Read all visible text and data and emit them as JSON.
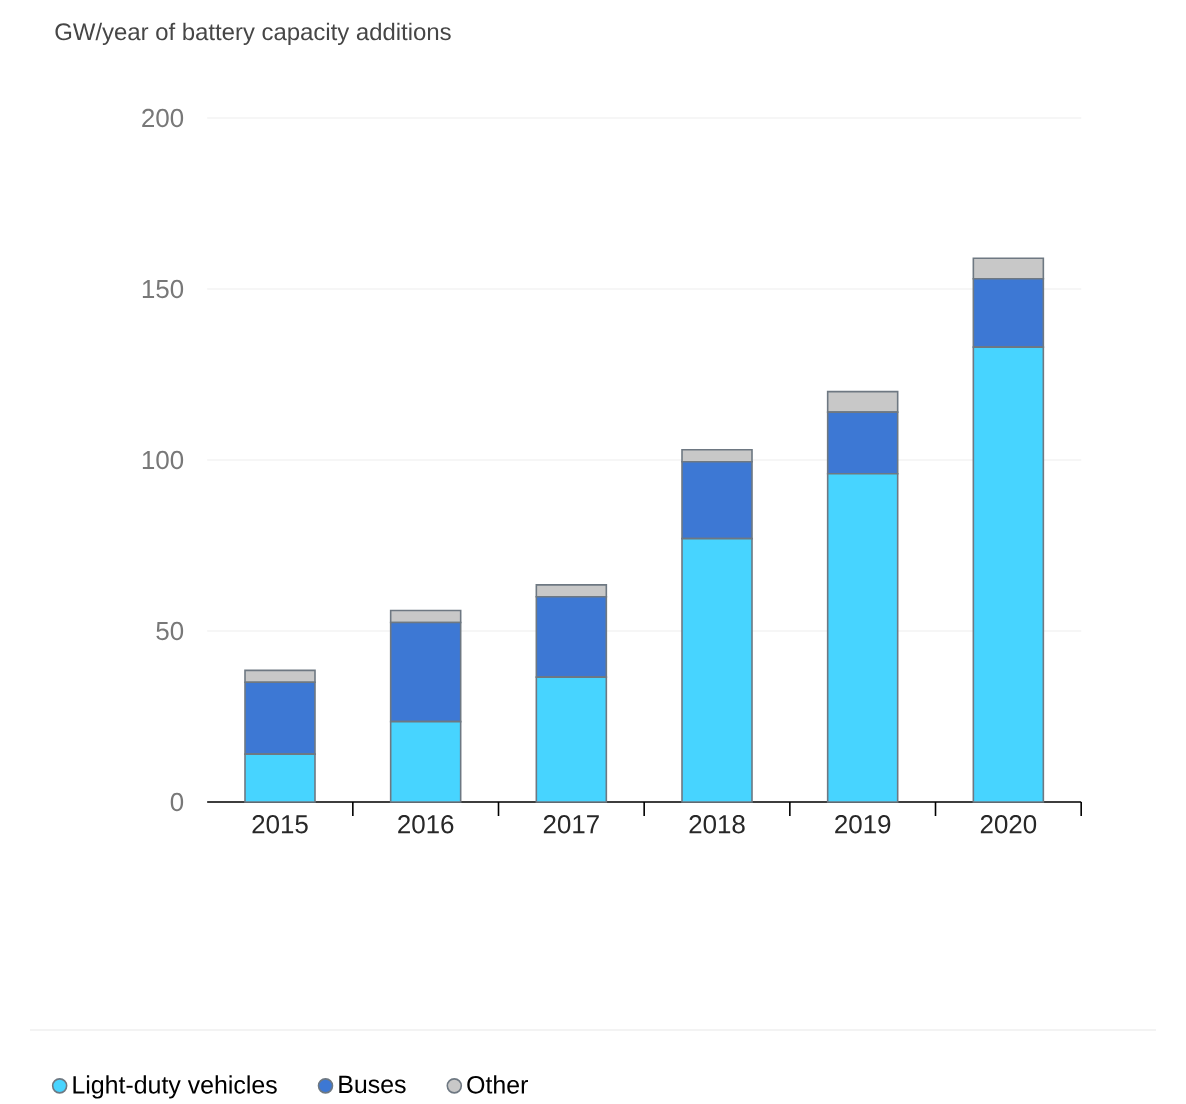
{
  "chart_data": {
    "type": "bar",
    "stacked": true,
    "ylabel": "GW/year of battery capacity additions",
    "categories": [
      "2015",
      "2016",
      "2017",
      "2018",
      "2019",
      "2020"
    ],
    "series": [
      {
        "name": "Light-duty vehicles",
        "color": "#47d4ff",
        "values": [
          14,
          23.5,
          36.5,
          77,
          96,
          133
        ]
      },
      {
        "name": "Buses",
        "color": "#3d78d4",
        "values": [
          21,
          29,
          23.5,
          22.5,
          18,
          20
        ]
      },
      {
        "name": "Other",
        "color": "#c8c8c8",
        "values": [
          3.5,
          3.5,
          3.5,
          3.5,
          6,
          6
        ]
      }
    ],
    "ylim": [
      0,
      200
    ],
    "yticks": [
      0,
      50,
      100,
      150,
      200
    ],
    "grid": "y",
    "legend": "bottom left"
  }
}
